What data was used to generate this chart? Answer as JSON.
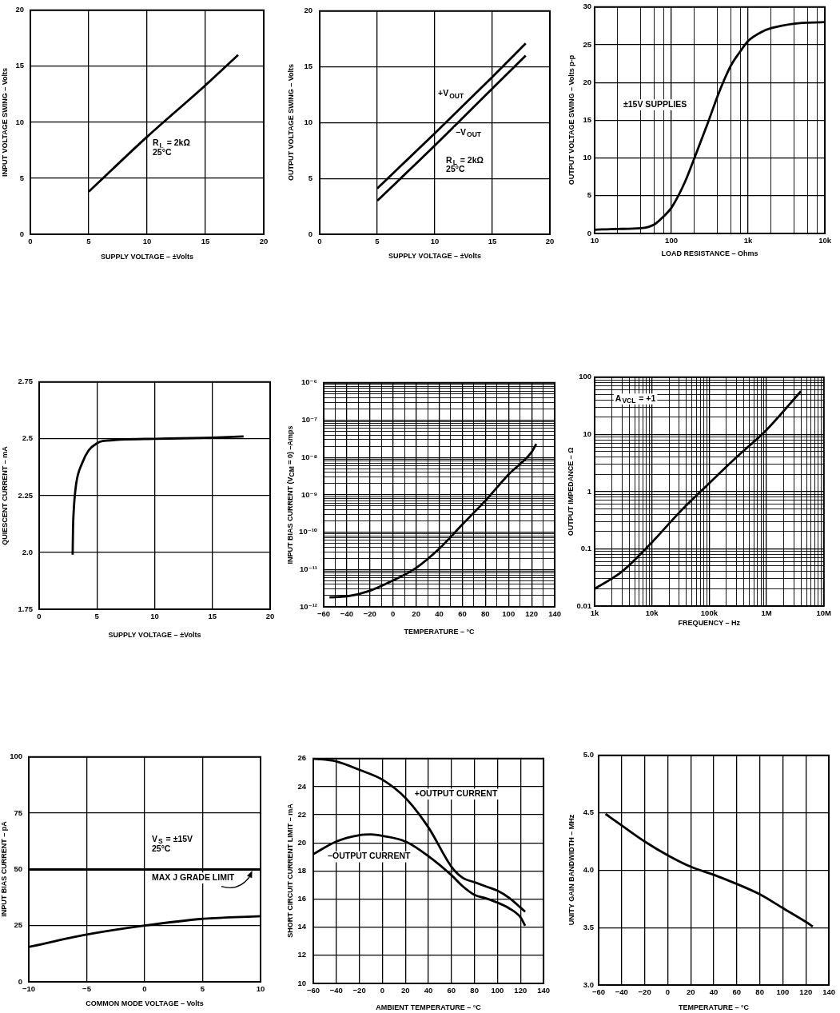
{
  "chart_data": [
    {
      "type": "line",
      "xlabel": "SUPPLY VOLTAGE – ±Volts",
      "ylabel": "INPUT VOLTAGE SWING – Volts",
      "xlim": [
        0,
        20
      ],
      "xticks": [
        0,
        5,
        10,
        15,
        20
      ],
      "ylim": [
        0,
        20
      ],
      "yticks": [
        0,
        5,
        10,
        15,
        20
      ],
      "grid": true,
      "annotations": [
        "R$_{L}$ = 2kΩ\n25°C"
      ],
      "series": [
        {
          "color": "#000000",
          "x": [
            5,
            10,
            15,
            17.8
          ],
          "values": [
            3.8,
            8.7,
            13.3,
            16
          ]
        }
      ]
    },
    {
      "type": "line",
      "xlabel": "SUPPLY VOLTAGE – ±Volts",
      "ylabel": "OUTPUT VOLTAGE SWING – Volts",
      "xlim": [
        0,
        20
      ],
      "xticks": [
        0,
        5,
        10,
        15,
        20
      ],
      "ylim": [
        0,
        20
      ],
      "yticks": [
        0,
        5,
        10,
        15,
        20
      ],
      "grid": true,
      "annotations": [
        "R$_{L}$ = 2kΩ\n25°C"
      ],
      "series": [
        {
          "name": "+V$_{OUT}$",
          "color": "#000000",
          "x": [
            5,
            10,
            15,
            17.9
          ],
          "values": [
            4.1,
            9.05,
            14.1,
            17.1
          ]
        },
        {
          "name": "−V$_{OUT}$",
          "color": "#000000",
          "x": [
            5,
            10,
            15,
            17.9
          ],
          "values": [
            3,
            7.95,
            13.05,
            16
          ]
        }
      ]
    },
    {
      "type": "line",
      "xlabel": "LOAD RESISTANCE – Ohms",
      "ylabel": "OUTPUT VOLTAGE SWING – Volts p-p",
      "log": "x",
      "xlim": [
        10,
        10000
      ],
      "xticks": [
        10,
        {
          "value": 20,
          "label": null
        },
        {
          "value": 40,
          "label": null
        },
        {
          "value": 60,
          "label": null
        },
        {
          "value": 80,
          "label": null
        },
        100,
        {
          "value": 200,
          "label": null
        },
        {
          "value": 400,
          "label": null
        },
        {
          "value": 600,
          "label": null
        },
        {
          "value": 800,
          "label": null
        },
        {
          "value": 1000,
          "label": "1k"
        },
        {
          "value": 2000,
          "label": null
        },
        {
          "value": 4000,
          "label": null
        },
        {
          "value": 6000,
          "label": null
        },
        {
          "value": 8000,
          "label": null
        },
        {
          "value": 10000,
          "label": "10k"
        }
      ],
      "ylim": [
        0,
        30
      ],
      "yticks": [
        0,
        5,
        10,
        15,
        20,
        25,
        30
      ],
      "grid": true,
      "annotations": [
        "±15V SUPPLIES"
      ],
      "series": [
        {
          "color": "#000000",
          "x": [
            10,
            20,
            40,
            60,
            80,
            100,
            150,
            200,
            300,
            400,
            500,
            600,
            800,
            1000,
            1500,
            2000,
            4000,
            10000
          ],
          "values": [
            0.5,
            0.6,
            0.7,
            1.2,
            2.3,
            3.4,
            6.8,
            10,
            14.7,
            18.2,
            20.6,
            22.3,
            24.2,
            25.5,
            26.7,
            27.2,
            27.8,
            28
          ]
        }
      ]
    },
    {
      "type": "line",
      "xlabel": "SUPPLY VOLTAGE – ±Volts",
      "ylabel": "QUIESCENT CURRENT – mA",
      "xlim": [
        0,
        20
      ],
      "xticks": [
        0,
        5,
        10,
        15,
        20
      ],
      "ylim": [
        1.75,
        2.75
      ],
      "yticks": [
        1.75,
        {
          "value": 2,
          "label": "2.0"
        },
        2.25,
        2.5,
        2.75
      ],
      "grid": true,
      "series": [
        {
          "color": "#000000",
          "x": [
            2.9,
            2.93,
            3.0,
            3.2,
            3.7,
            4.3,
            5.0,
            5.5,
            10,
            15,
            17.7
          ],
          "values": [
            1.99,
            2.1,
            2.19,
            2.3,
            2.39,
            2.45,
            2.48,
            2.49,
            2.5,
            2.505,
            2.51
          ]
        }
      ]
    },
    {
      "type": "line",
      "xlabel": "TEMPERATURE – °C",
      "ylabel": "INPUT BIAS CURRENT (V$_{CM}$ = 0) –Amps",
      "log": "y",
      "xlim": [
        -60,
        140
      ],
      "xticks": [
        {
          "value": -60,
          "label": "−60"
        },
        {
          "value": -50,
          "label": null
        },
        {
          "value": -40,
          "label": "−40"
        },
        {
          "value": -30,
          "label": null
        },
        {
          "value": -20,
          "label": "−20"
        },
        {
          "value": -10,
          "label": null
        },
        0,
        {
          "value": 10,
          "label": null
        },
        20,
        {
          "value": 30,
          "label": null
        },
        40,
        {
          "value": 50,
          "label": null
        },
        60,
        {
          "value": 70,
          "label": null
        },
        80,
        {
          "value": 90,
          "label": null
        },
        100,
        {
          "value": 110,
          "label": null
        },
        120,
        {
          "value": 130,
          "label": null
        },
        140
      ],
      "ylim": [
        1e-12,
        1e-06
      ],
      "yticks": [
        {
          "value": 1e-12,
          "label": "10⁻¹²"
        },
        {
          "value": 2e-12,
          "label": null
        },
        {
          "value": 3e-12,
          "label": null
        },
        {
          "value": 4e-12,
          "label": null
        },
        {
          "value": 5e-12,
          "label": null
        },
        {
          "value": 6e-12,
          "label": null
        },
        {
          "value": 7e-12,
          "label": null
        },
        {
          "value": 8e-12,
          "label": null
        },
        {
          "value": 9e-12,
          "label": null
        },
        {
          "value": 1e-11,
          "label": "10⁻¹¹"
        },
        {
          "value": 2e-11,
          "label": null
        },
        {
          "value": 3e-11,
          "label": null
        },
        {
          "value": 4e-11,
          "label": null
        },
        {
          "value": 5e-11,
          "label": null
        },
        {
          "value": 6e-11,
          "label": null
        },
        {
          "value": 7e-11,
          "label": null
        },
        {
          "value": 8e-11,
          "label": null
        },
        {
          "value": 9e-11,
          "label": null
        },
        {
          "value": 1e-10,
          "label": "10⁻¹⁰"
        },
        {
          "value": 2e-10,
          "label": null
        },
        {
          "value": 3e-10,
          "label": null
        },
        {
          "value": 4e-10,
          "label": null
        },
        {
          "value": 5e-10,
          "label": null
        },
        {
          "value": 6e-10,
          "label": null
        },
        {
          "value": 7e-10,
          "label": null
        },
        {
          "value": 8e-10,
          "label": null
        },
        {
          "value": 9e-10,
          "label": null
        },
        {
          "value": 1e-09,
          "label": "10⁻⁹"
        },
        {
          "value": 2e-09,
          "label": null
        },
        {
          "value": 3e-09,
          "label": null
        },
        {
          "value": 4e-09,
          "label": null
        },
        {
          "value": 5e-09,
          "label": null
        },
        {
          "value": 6e-09,
          "label": null
        },
        {
          "value": 7e-09,
          "label": null
        },
        {
          "value": 8e-09,
          "label": null
        },
        {
          "value": 9e-09,
          "label": null
        },
        {
          "value": 1e-08,
          "label": "10⁻⁸"
        },
        {
          "value": 2e-08,
          "label": null
        },
        {
          "value": 3e-08,
          "label": null
        },
        {
          "value": 4e-08,
          "label": null
        },
        {
          "value": 5e-08,
          "label": null
        },
        {
          "value": 6e-08,
          "label": null
        },
        {
          "value": 7e-08,
          "label": null
        },
        {
          "value": 8e-08,
          "label": null
        },
        {
          "value": 9e-08,
          "label": null
        },
        {
          "value": 1e-07,
          "label": "10⁻⁷"
        },
        {
          "value": 2e-07,
          "label": null
        },
        {
          "value": 3e-07,
          "label": null
        },
        {
          "value": 4e-07,
          "label": null
        },
        {
          "value": 5e-07,
          "label": null
        },
        {
          "value": 6e-07,
          "label": null
        },
        {
          "value": 7e-07,
          "label": null
        },
        {
          "value": 8e-07,
          "label": null
        },
        {
          "value": 9e-07,
          "label": null
        },
        {
          "value": 1e-06,
          "label": "10⁻⁶"
        }
      ],
      "grid": true,
      "series": [
        {
          "color": "#000000",
          "x": [
            -55,
            -40,
            -20,
            0,
            20,
            40,
            60,
            80,
            100,
            120,
            124
          ],
          "values": [
            1.8e-12,
            1.9e-12,
            2.7e-12,
            5.1e-12,
            1.1e-11,
            3.6e-11,
            1.6e-10,
            7e-10,
            3.5e-09,
            1.4e-08,
            2.3e-08
          ]
        }
      ]
    },
    {
      "type": "line",
      "xlabel": "FREQUENCY – Hz",
      "ylabel": "OUTPUT IMPEDANCE – Ω",
      "log": "xy",
      "xlim": [
        1000,
        10000000
      ],
      "xticks": [
        {
          "value": 1000,
          "label": "1k"
        },
        {
          "value": 2000,
          "label": null
        },
        {
          "value": 3000,
          "label": null
        },
        {
          "value": 4000,
          "label": null
        },
        {
          "value": 5000,
          "label": null
        },
        {
          "value": 6000,
          "label": null
        },
        {
          "value": 7000,
          "label": null
        },
        {
          "value": 8000,
          "label": null
        },
        {
          "value": 9000,
          "label": null
        },
        {
          "value": 10000,
          "label": "10k"
        },
        {
          "value": 20000,
          "label": null
        },
        {
          "value": 30000,
          "label": null
        },
        {
          "value": 40000,
          "label": null
        },
        {
          "value": 50000,
          "label": null
        },
        {
          "value": 60000,
          "label": null
        },
        {
          "value": 70000,
          "label": null
        },
        {
          "value": 80000,
          "label": null
        },
        {
          "value": 90000,
          "label": null
        },
        {
          "value": 100000,
          "label": "100k"
        },
        {
          "value": 200000,
          "label": null
        },
        {
          "value": 300000,
          "label": null
        },
        {
          "value": 400000,
          "label": null
        },
        {
          "value": 500000,
          "label": null
        },
        {
          "value": 600000,
          "label": null
        },
        {
          "value": 700000,
          "label": null
        },
        {
          "value": 800000,
          "label": null
        },
        {
          "value": 900000,
          "label": null
        },
        {
          "value": 1000000,
          "label": "1M"
        },
        {
          "value": 2000000,
          "label": null
        },
        {
          "value": 3000000,
          "label": null
        },
        {
          "value": 4000000,
          "label": null
        },
        {
          "value": 5000000,
          "label": null
        },
        {
          "value": 6000000,
          "label": null
        },
        {
          "value": 7000000,
          "label": null
        },
        {
          "value": 8000000,
          "label": null
        },
        {
          "value": 9000000,
          "label": null
        },
        {
          "value": 10000000,
          "label": "10M"
        }
      ],
      "ylim": [
        0.01,
        100
      ],
      "yticks": [
        0.01,
        {
          "value": 0.02,
          "label": null
        },
        {
          "value": 0.03,
          "label": null
        },
        {
          "value": 0.04,
          "label": null
        },
        {
          "value": 0.05,
          "label": null
        },
        {
          "value": 0.06,
          "label": null
        },
        {
          "value": 0.07,
          "label": null
        },
        {
          "value": 0.08,
          "label": null
        },
        {
          "value": 0.09,
          "label": null
        },
        0.1,
        {
          "value": 0.2,
          "label": null
        },
        {
          "value": 0.3,
          "label": null
        },
        {
          "value": 0.4,
          "label": null
        },
        {
          "value": 0.5,
          "label": null
        },
        {
          "value": 0.6,
          "label": null
        },
        {
          "value": 0.7,
          "label": null
        },
        {
          "value": 0.8,
          "label": null
        },
        {
          "value": 0.9,
          "label": null
        },
        1,
        {
          "value": 2,
          "label": null
        },
        {
          "value": 3,
          "label": null
        },
        {
          "value": 4,
          "label": null
        },
        {
          "value": 5,
          "label": null
        },
        {
          "value": 6,
          "label": null
        },
        {
          "value": 7,
          "label": null
        },
        {
          "value": 8,
          "label": null
        },
        {
          "value": 9,
          "label": null
        },
        10,
        {
          "value": 20,
          "label": null
        },
        {
          "value": 30,
          "label": null
        },
        {
          "value": 40,
          "label": null
        },
        {
          "value": 50,
          "label": null
        },
        {
          "value": 60,
          "label": null
        },
        {
          "value": 70,
          "label": null
        },
        {
          "value": 80,
          "label": null
        },
        {
          "value": 90,
          "label": null
        },
        100
      ],
      "grid": true,
      "annotations": [
        "A$_{VCL}$ = +1"
      ],
      "series": [
        {
          "color": "#000000",
          "x": [
            1000,
            3000,
            10000,
            30000,
            100000,
            300000,
            1000000,
            4000000
          ],
          "values": [
            0.02,
            0.04,
            0.13,
            0.43,
            1.4,
            4,
            12,
            57
          ]
        }
      ]
    },
    {
      "type": "line",
      "xlabel": "COMMON MODE VOLTAGE – Volts",
      "ylabel": "INPUT BIAS CURRENT – pA",
      "xlim": [
        -10,
        10
      ],
      "xticks": [
        {
          "value": -10,
          "label": "−10"
        },
        {
          "value": -5,
          "label": "−5"
        },
        0,
        5,
        10
      ],
      "ylim": [
        0,
        100
      ],
      "yticks": [
        0,
        25,
        50,
        75,
        100
      ],
      "grid": true,
      "annotations": [
        "V$_{S}$ = ±15V\n25°C"
      ],
      "ref_lines": [
        {
          "axis": "y",
          "value": 50,
          "label": "MAX J GRADE LIMIT",
          "color": "#000000"
        }
      ],
      "series": [
        {
          "color": "#000000",
          "x": [
            -10,
            -5,
            0,
            5,
            10
          ],
          "values": [
            15.5,
            21,
            25,
            28,
            29.2
          ]
        }
      ]
    },
    {
      "type": "line",
      "xlabel": "AMBIENT TEMPERATURE – °C",
      "ylabel": "SHORT CIRCUIT CURRENT LIMIT – mA",
      "xlim": [
        -60,
        140
      ],
      "xticks": [
        {
          "value": -60,
          "label": "−60"
        },
        {
          "value": -40,
          "label": "−40"
        },
        {
          "value": -20,
          "label": "−20"
        },
        0,
        20,
        40,
        60,
        80,
        100,
        120,
        140
      ],
      "ylim": [
        10,
        26
      ],
      "yticks": [
        10,
        12,
        14,
        16,
        18,
        20,
        22,
        24,
        26
      ],
      "grid": true,
      "series": [
        {
          "name": "+OUTPUT CURRENT",
          "color": "#000000",
          "x": [
            -60,
            -40,
            -20,
            0,
            20,
            40,
            60,
            70,
            80,
            90,
            100,
            110,
            120,
            124
          ],
          "values": [
            26,
            25.8,
            25.2,
            24.5,
            23.2,
            21.1,
            18.3,
            17.5,
            17.2,
            16.9,
            16.6,
            16.1,
            15.4,
            15.1
          ]
        },
        {
          "name": "−OUTPUT CURRENT",
          "color": "#000000",
          "x": [
            -60,
            -40,
            -20,
            -10,
            0,
            20,
            40,
            60,
            70,
            80,
            90,
            100,
            110,
            120,
            124
          ],
          "values": [
            19.2,
            20.1,
            20.55,
            20.6,
            20.5,
            20.1,
            19.05,
            17.7,
            16.9,
            16.3,
            16.05,
            15.75,
            15.35,
            14.7,
            14.1
          ]
        }
      ]
    },
    {
      "type": "line",
      "xlabel": "TEMPERATURE – °C",
      "ylabel": "UNITY GAIN BANDWIDTH – MHz",
      "xlim": [
        -60,
        140
      ],
      "xticks": [
        {
          "value": -60,
          "label": "−60"
        },
        {
          "value": -40,
          "label": "−40"
        },
        {
          "value": -20,
          "label": "−20"
        },
        0,
        20,
        40,
        60,
        80,
        100,
        120,
        140
      ],
      "ylim": [
        3,
        5
      ],
      "yticks": [
        {
          "value": 3,
          "label": "3.0"
        },
        3.5,
        {
          "value": 4,
          "label": "4.0"
        },
        4.5,
        {
          "value": 5,
          "label": "5.0"
        }
      ],
      "grid": true,
      "series": [
        {
          "color": "#000000",
          "x": [
            -54,
            -40,
            -20,
            0,
            20,
            40,
            60,
            80,
            100,
            120,
            126
          ],
          "values": [
            4.49,
            4.39,
            4.25,
            4.13,
            4.03,
            3.96,
            3.88,
            3.79,
            3.67,
            3.55,
            3.51
          ]
        }
      ]
    }
  ]
}
